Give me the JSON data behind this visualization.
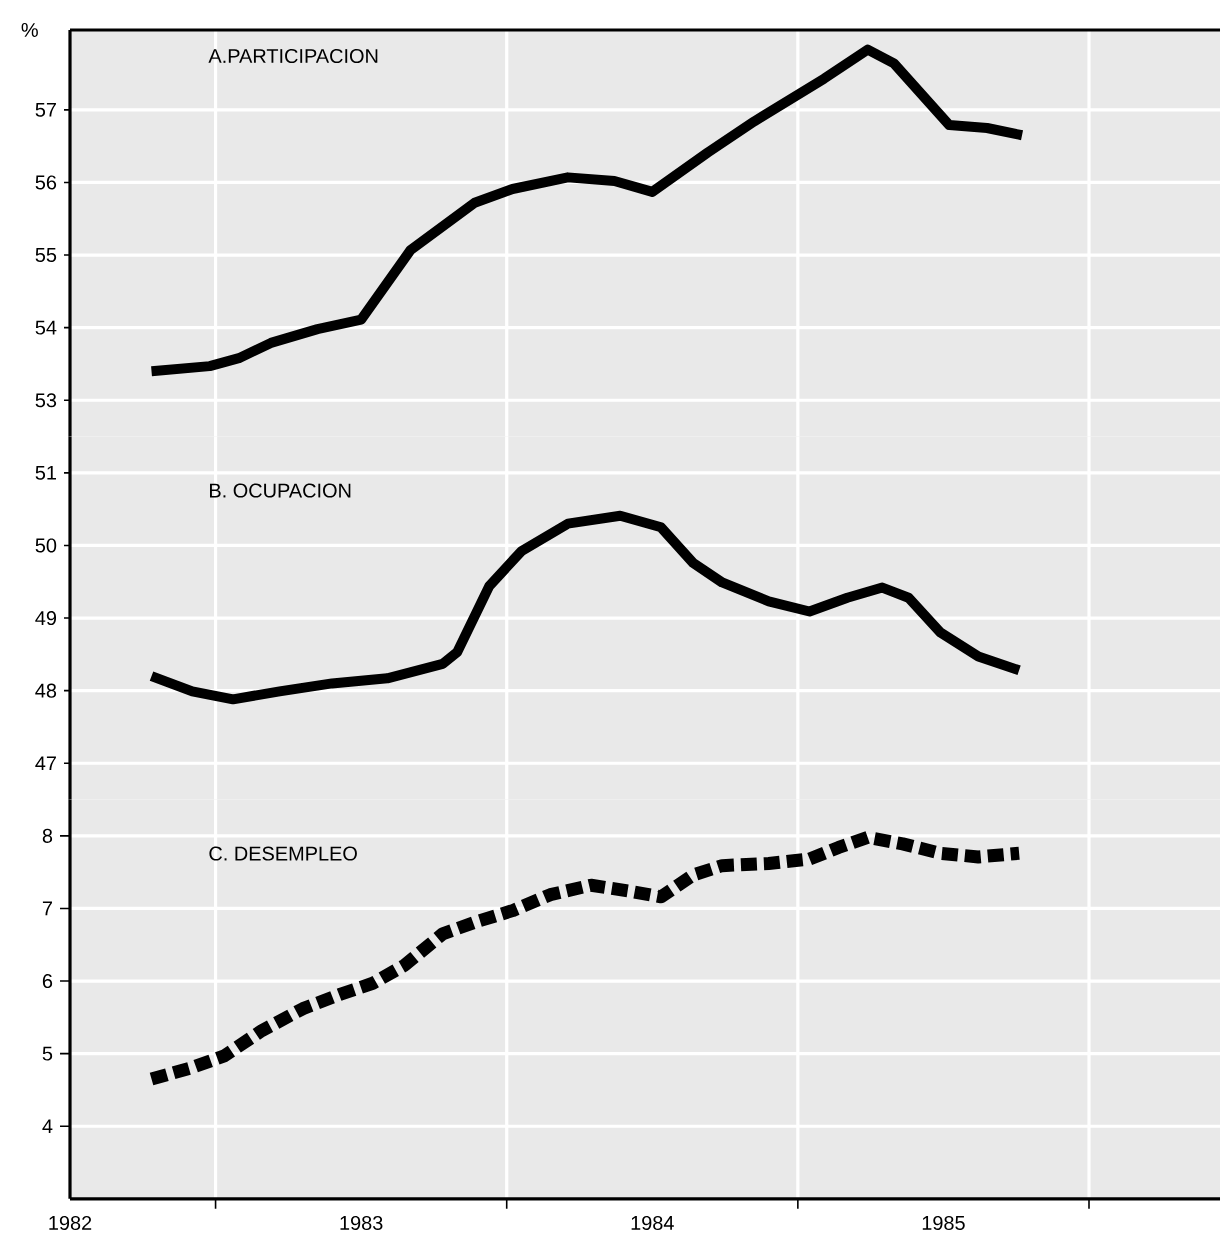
{
  "chart_data": [
    {
      "type": "line",
      "title": "A.PARTICIPACION",
      "ylabel": "%",
      "color": "#000000",
      "line_style": "solid",
      "grid": true,
      "tick_labels": "y",
      "xlim": [
        1982.5,
        1986.45
      ],
      "ylim": [
        52.5,
        58.1
      ],
      "yticks": [
        53,
        54,
        55,
        56,
        57
      ],
      "xticks": [
        {
          "value": 1983,
          "label": null
        },
        {
          "value": 1984,
          "label": null
        },
        {
          "value": 1985,
          "label": null
        },
        {
          "value": 1986,
          "label": null
        }
      ],
      "x": [
        1982.78,
        1982.98,
        1983.08,
        1983.19,
        1983.35,
        1983.5,
        1983.67,
        1983.89,
        1984.02,
        1984.21,
        1984.37,
        1984.5,
        1984.69,
        1984.85,
        1985.09,
        1985.24,
        1985.33,
        1985.52,
        1985.65,
        1985.77
      ],
      "values": [
        53.4,
        53.47,
        53.58,
        53.79,
        53.98,
        54.11,
        55.07,
        55.72,
        55.91,
        56.07,
        56.02,
        55.87,
        56.41,
        56.84,
        57.43,
        57.83,
        57.64,
        56.79,
        56.75,
        56.65
      ]
    },
    {
      "type": "line",
      "title": "B. OCUPACION",
      "color": "#000000",
      "line_style": "solid",
      "grid": true,
      "tick_labels": "y",
      "xlim": [
        1982.5,
        1986.45
      ],
      "ylim": [
        46.5,
        51.5
      ],
      "yticks": [
        47,
        48,
        49,
        50,
        51
      ],
      "xticks": [
        {
          "value": 1983,
          "label": null
        },
        {
          "value": 1984,
          "label": null
        },
        {
          "value": 1985,
          "label": null
        },
        {
          "value": 1986,
          "label": null
        }
      ],
      "x": [
        1982.78,
        1982.92,
        1983.06,
        1983.22,
        1983.4,
        1983.59,
        1983.78,
        1983.83,
        1983.94,
        1984.05,
        1984.21,
        1984.39,
        1984.53,
        1984.64,
        1984.74,
        1984.9,
        1985.04,
        1985.17,
        1985.29,
        1985.38,
        1985.49,
        1985.62,
        1985.76
      ],
      "values": [
        48.2,
        47.99,
        47.88,
        47.99,
        48.1,
        48.17,
        48.37,
        48.53,
        49.44,
        49.92,
        50.3,
        50.41,
        50.25,
        49.76,
        49.49,
        49.23,
        49.09,
        49.28,
        49.42,
        49.28,
        48.8,
        48.47,
        48.28
      ]
    },
    {
      "type": "line",
      "title": "C. DESEMPLEO",
      "color": "#000000",
      "line_style": "dashed",
      "grid": true,
      "xlim": [
        1982.5,
        1986.45
      ],
      "ylim": [
        3,
        8.5
      ],
      "yticks": [
        4,
        5,
        6,
        7,
        8
      ],
      "xticks": [
        {
          "value": 1983,
          "label": null
        },
        {
          "value": 1984,
          "label": null
        },
        {
          "value": 1985,
          "label": null
        },
        {
          "value": 1986,
          "label": null
        },
        {
          "value": 1982.5,
          "label": "1982"
        },
        {
          "value": 1983.5,
          "label": "1983"
        },
        {
          "value": 1984.5,
          "label": "1984"
        },
        {
          "value": 1985.5,
          "label": "1985"
        }
      ],
      "x": [
        1982.78,
        1982.92,
        1983.03,
        1983.16,
        1983.3,
        1983.43,
        1983.54,
        1983.65,
        1983.78,
        1983.89,
        1984.02,
        1984.15,
        1984.29,
        1984.42,
        1984.53,
        1984.64,
        1984.74,
        1984.9,
        1985.04,
        1985.14,
        1985.24,
        1985.36,
        1985.49,
        1985.62,
        1985.76
      ],
      "values": [
        4.65,
        4.81,
        4.97,
        5.32,
        5.62,
        5.82,
        5.97,
        6.22,
        6.65,
        6.81,
        6.97,
        7.19,
        7.32,
        7.24,
        7.16,
        7.46,
        7.59,
        7.62,
        7.68,
        7.84,
        7.98,
        7.89,
        7.76,
        7.71,
        7.76
      ]
    }
  ]
}
